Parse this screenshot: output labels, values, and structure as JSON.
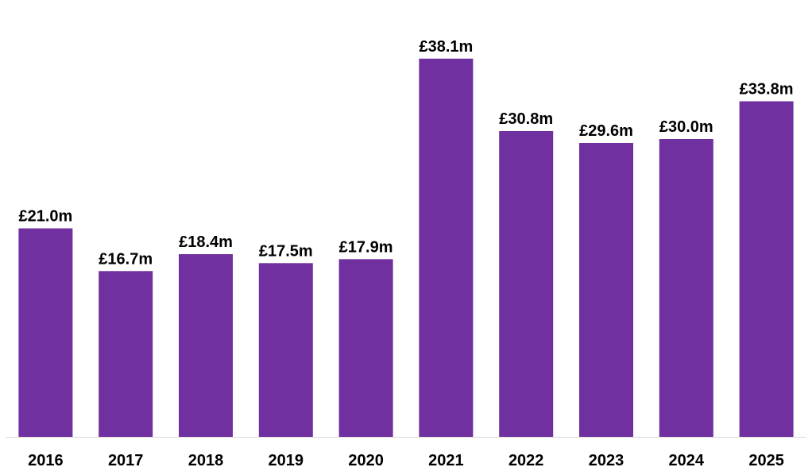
{
  "chart_data": {
    "type": "bar",
    "title": "",
    "xlabel": "",
    "ylabel": "",
    "categories": [
      "2016",
      "2017",
      "2018",
      "2019",
      "2020",
      "2021",
      "2022",
      "2023",
      "2024",
      "2025"
    ],
    "values": [
      21.0,
      16.7,
      18.4,
      17.5,
      17.9,
      38.1,
      30.8,
      29.6,
      30.0,
      33.8
    ],
    "data_labels": [
      "£21.0m",
      "£16.7m",
      "£18.4m",
      "£17.5m",
      "£17.9m",
      "£38.1m",
      "£30.8m",
      "£29.6m",
      "£30.0m",
      "£33.8m"
    ],
    "ylim": [
      0,
      40
    ],
    "grid": false,
    "legend": "none",
    "colors": {
      "bar": "#7030a0",
      "axis": "#d9d9d9",
      "text": "#000000"
    }
  }
}
